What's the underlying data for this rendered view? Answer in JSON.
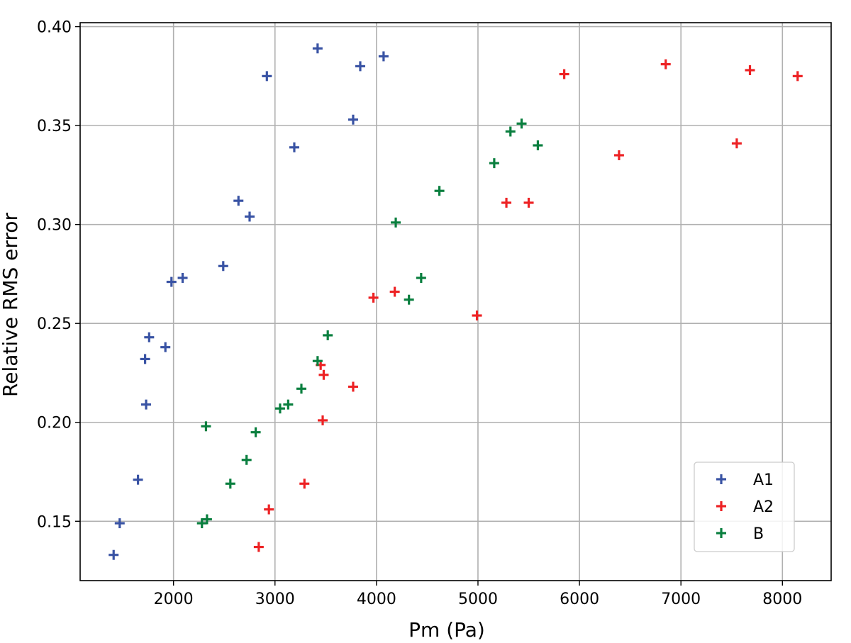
{
  "chart_data": {
    "type": "scatter",
    "title": "",
    "xlabel": "Pm (Pa)",
    "ylabel": "Relative RMS error",
    "xlim": [
      1080,
      8480
    ],
    "ylim": [
      0.12,
      0.402
    ],
    "xticks": [
      2000,
      3000,
      4000,
      5000,
      6000,
      7000,
      8000
    ],
    "xtick_labels": [
      "2000",
      "3000",
      "4000",
      "5000",
      "6000",
      "7000",
      "8000"
    ],
    "yticks": [
      0.15,
      0.2,
      0.25,
      0.3,
      0.35,
      0.4
    ],
    "ytick_labels": [
      "0.15",
      "0.20",
      "0.25",
      "0.30",
      "0.35",
      "0.40"
    ],
    "grid": true,
    "marker": "+",
    "legend_position": "lower-right",
    "series": [
      {
        "name": "A1",
        "color": "#3953a4",
        "points": [
          [
            1410,
            0.133
          ],
          [
            1470,
            0.149
          ],
          [
            1650,
            0.171
          ],
          [
            1730,
            0.209
          ],
          [
            1720,
            0.232
          ],
          [
            1760,
            0.243
          ],
          [
            1920,
            0.238
          ],
          [
            1980,
            0.271
          ],
          [
            2090,
            0.273
          ],
          [
            2490,
            0.279
          ],
          [
            2640,
            0.312
          ],
          [
            2750,
            0.304
          ],
          [
            2920,
            0.375
          ],
          [
            3190,
            0.339
          ],
          [
            3420,
            0.389
          ],
          [
            3770,
            0.353
          ],
          [
            3840,
            0.38
          ],
          [
            4070,
            0.385
          ]
        ]
      },
      {
        "name": "A2",
        "color": "#ed2224",
        "points": [
          [
            2840,
            0.137
          ],
          [
            2940,
            0.156
          ],
          [
            3290,
            0.169
          ],
          [
            3470,
            0.201
          ],
          [
            3450,
            0.229
          ],
          [
            3480,
            0.224
          ],
          [
            3770,
            0.218
          ],
          [
            3970,
            0.263
          ],
          [
            4180,
            0.266
          ],
          [
            4990,
            0.254
          ],
          [
            5280,
            0.311
          ],
          [
            5500,
            0.311
          ],
          [
            5850,
            0.376
          ],
          [
            6390,
            0.335
          ],
          [
            6850,
            0.381
          ],
          [
            7550,
            0.341
          ],
          [
            7680,
            0.378
          ],
          [
            8150,
            0.375
          ]
        ]
      },
      {
        "name": "B",
        "color": "#0a7f3f",
        "points": [
          [
            2280,
            0.149
          ],
          [
            2330,
            0.151
          ],
          [
            2320,
            0.198
          ],
          [
            2560,
            0.169
          ],
          [
            2720,
            0.181
          ],
          [
            2810,
            0.195
          ],
          [
            3050,
            0.207
          ],
          [
            3130,
            0.209
          ],
          [
            3260,
            0.217
          ],
          [
            3420,
            0.231
          ],
          [
            3520,
            0.244
          ],
          [
            4190,
            0.301
          ],
          [
            4320,
            0.262
          ],
          [
            4440,
            0.273
          ],
          [
            4620,
            0.317
          ],
          [
            5160,
            0.331
          ],
          [
            5320,
            0.347
          ],
          [
            5430,
            0.351
          ],
          [
            5590,
            0.34
          ]
        ]
      }
    ]
  }
}
